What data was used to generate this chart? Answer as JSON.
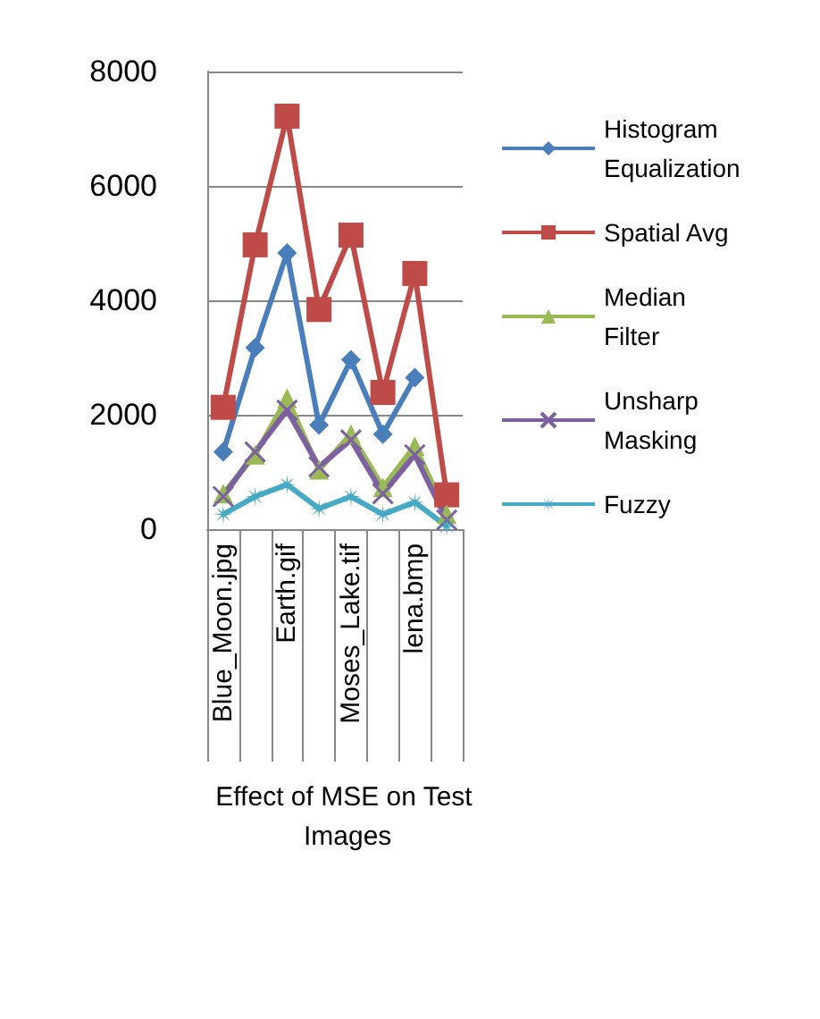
{
  "chart_data": {
    "type": "line",
    "xlabel": "Effect of MSE on Test Images",
    "categories": [
      "Blue_Moon.jpg",
      null,
      "Earth.gif",
      null,
      "Moses_Lake.tif",
      null,
      "lena.bmp",
      null
    ],
    "ylim": [
      0,
      8000
    ],
    "yticks": [
      0,
      2000,
      4000,
      6000,
      8000
    ],
    "grid": "y",
    "legend": "right",
    "series": [
      {
        "name": "Histogram Equalization",
        "color": "#4a7ebb",
        "marker": "diamond",
        "values": [
          1350,
          3170,
          4830,
          1820,
          2960,
          1660,
          2650,
          null
        ]
      },
      {
        "name": "Spatial Avg",
        "color": "#be4b48",
        "marker": "square",
        "values": [
          2130,
          4970,
          7220,
          3840,
          5140,
          2390,
          4470,
          600
        ]
      },
      {
        "name": "Median Filter",
        "color": "#98b954",
        "marker": "triangle",
        "values": [
          620,
          1300,
          2290,
          1040,
          1660,
          730,
          1450,
          260
        ]
      },
      {
        "name": "Unsharp Masking",
        "color": "#7d60a0",
        "marker": "cross",
        "values": [
          570,
          1350,
          2080,
          1090,
          1560,
          620,
          1300,
          160
        ]
      },
      {
        "name": "Fuzzy",
        "color": "#46aac5",
        "marker": "star",
        "values": [
          260,
          570,
          780,
          360,
          570,
          260,
          470,
          50
        ]
      }
    ]
  }
}
